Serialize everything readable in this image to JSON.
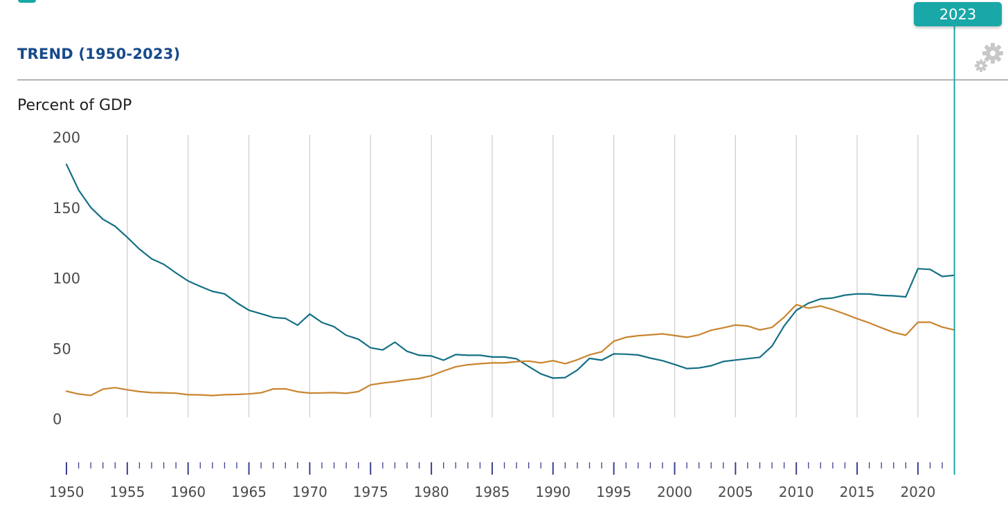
{
  "header": {
    "section_title": "TREND (1950-2023)",
    "selected_year": "2023"
  },
  "colors": {
    "series_teal": "#136f84",
    "series_orange": "#c8842e",
    "accent": "#1aa7a7",
    "title_blue": "#174a8b",
    "grid": "#cccccc",
    "axis_ticks": "#3a3f8f"
  },
  "icons": {
    "settings": "gear-icon"
  },
  "chart_data": {
    "type": "line",
    "ylabel": "Percent of GDP",
    "xlabel": "",
    "ylim": [
      0,
      200
    ],
    "xlim": [
      1950,
      2023
    ],
    "y_ticks": [
      0,
      50,
      100,
      150,
      200
    ],
    "x_ticks": [
      1950,
      1955,
      1960,
      1965,
      1970,
      1975,
      1980,
      1985,
      1990,
      1995,
      2000,
      2005,
      2010,
      2015,
      2020
    ],
    "grid": "vertical",
    "highlight_year": 2023,
    "series": [
      {
        "color": "#136f84",
        "points": [
          [
            1950,
            180.6
          ],
          [
            1951,
            162.3
          ],
          [
            1952,
            150.0
          ],
          [
            1953,
            141.6
          ],
          [
            1954,
            136.6
          ],
          [
            1955,
            128.8
          ],
          [
            1956,
            120.4
          ],
          [
            1957,
            113.5
          ],
          [
            1958,
            109.6
          ],
          [
            1959,
            103.5
          ],
          [
            1960,
            97.8
          ],
          [
            1961,
            93.9
          ],
          [
            1962,
            90.4
          ],
          [
            1963,
            88.6
          ],
          [
            1964,
            82.3
          ],
          [
            1965,
            77.0
          ],
          [
            1966,
            74.5
          ],
          [
            1967,
            71.9
          ],
          [
            1968,
            71.2
          ],
          [
            1969,
            66.4
          ],
          [
            1970,
            74.3
          ],
          [
            1971,
            68.3
          ],
          [
            1972,
            65.3
          ],
          [
            1973,
            59.2
          ],
          [
            1974,
            56.4
          ],
          [
            1975,
            50.3
          ],
          [
            1976,
            48.8
          ],
          [
            1977,
            54.3
          ],
          [
            1978,
            47.8
          ],
          [
            1979,
            45.0
          ],
          [
            1980,
            44.5
          ],
          [
            1981,
            41.5
          ],
          [
            1982,
            45.5
          ],
          [
            1983,
            45.0
          ],
          [
            1984,
            45.0
          ],
          [
            1985,
            43.8
          ],
          [
            1986,
            43.8
          ],
          [
            1987,
            42.5
          ],
          [
            1988,
            37.0
          ],
          [
            1989,
            31.8
          ],
          [
            1990,
            28.8
          ],
          [
            1991,
            29.2
          ],
          [
            1992,
            34.5
          ],
          [
            1993,
            42.8
          ],
          [
            1994,
            41.5
          ],
          [
            1995,
            46.0
          ],
          [
            1996,
            45.8
          ],
          [
            1997,
            45.2
          ],
          [
            1998,
            43.0
          ],
          [
            1999,
            41.2
          ],
          [
            2000,
            38.5
          ],
          [
            2001,
            35.6
          ],
          [
            2002,
            36.0
          ],
          [
            2003,
            37.6
          ],
          [
            2004,
            40.6
          ],
          [
            2005,
            41.6
          ],
          [
            2006,
            42.6
          ],
          [
            2007,
            43.6
          ],
          [
            2008,
            51.5
          ],
          [
            2009,
            65.8
          ],
          [
            2010,
            76.9
          ],
          [
            2011,
            82.0
          ],
          [
            2012,
            85.0
          ],
          [
            2013,
            85.7
          ],
          [
            2014,
            87.7
          ],
          [
            2015,
            88.6
          ],
          [
            2016,
            88.5
          ],
          [
            2017,
            87.5
          ],
          [
            2018,
            87.2
          ],
          [
            2019,
            86.5
          ],
          [
            2020,
            106.5
          ],
          [
            2021,
            106.0
          ],
          [
            2022,
            101.0
          ],
          [
            2023,
            101.8
          ]
        ]
      },
      {
        "color": "#c8842e",
        "points": [
          [
            1950,
            19.5
          ],
          [
            1951,
            17.5
          ],
          [
            1952,
            16.5
          ],
          [
            1953,
            21.0
          ],
          [
            1954,
            22.0
          ],
          [
            1955,
            20.5
          ],
          [
            1956,
            19.2
          ],
          [
            1957,
            18.5
          ],
          [
            1958,
            18.4
          ],
          [
            1959,
            18.1
          ],
          [
            1960,
            17.0
          ],
          [
            1961,
            16.9
          ],
          [
            1962,
            16.4
          ],
          [
            1963,
            17.0
          ],
          [
            1964,
            17.2
          ],
          [
            1965,
            17.6
          ],
          [
            1966,
            18.4
          ],
          [
            1967,
            21.1
          ],
          [
            1968,
            21.2
          ],
          [
            1969,
            19.1
          ],
          [
            1970,
            18.2
          ],
          [
            1971,
            18.3
          ],
          [
            1972,
            18.5
          ],
          [
            1973,
            18.0
          ],
          [
            1974,
            19.2
          ],
          [
            1975,
            24.0
          ],
          [
            1976,
            25.3
          ],
          [
            1977,
            26.3
          ],
          [
            1978,
            27.6
          ],
          [
            1979,
            28.5
          ],
          [
            1980,
            30.5
          ],
          [
            1981,
            33.9
          ],
          [
            1982,
            36.8
          ],
          [
            1983,
            38.3
          ],
          [
            1984,
            39.0
          ],
          [
            1985,
            39.6
          ],
          [
            1986,
            39.6
          ],
          [
            1987,
            40.5
          ],
          [
            1988,
            40.9
          ],
          [
            1989,
            39.6
          ],
          [
            1990,
            41.2
          ],
          [
            1991,
            39.0
          ],
          [
            1992,
            41.8
          ],
          [
            1993,
            45.3
          ],
          [
            1994,
            47.5
          ],
          [
            1995,
            55.0
          ],
          [
            1996,
            57.8
          ],
          [
            1997,
            58.9
          ],
          [
            1998,
            59.5
          ],
          [
            1999,
            60.2
          ],
          [
            2000,
            59.0
          ],
          [
            2001,
            57.8
          ],
          [
            2002,
            59.5
          ],
          [
            2003,
            62.8
          ],
          [
            2004,
            64.5
          ],
          [
            2005,
            66.5
          ],
          [
            2006,
            65.8
          ],
          [
            2007,
            63.0
          ],
          [
            2008,
            64.8
          ],
          [
            2009,
            72.0
          ],
          [
            2010,
            81.0
          ],
          [
            2011,
            78.5
          ],
          [
            2012,
            80.0
          ],
          [
            2013,
            77.4
          ],
          [
            2014,
            74.3
          ],
          [
            2015,
            71.0
          ],
          [
            2016,
            68.0
          ],
          [
            2017,
            64.5
          ],
          [
            2018,
            61.3
          ],
          [
            2019,
            59.2
          ],
          [
            2020,
            68.5
          ],
          [
            2021,
            68.5
          ],
          [
            2022,
            65.0
          ],
          [
            2023,
            63.0
          ]
        ]
      }
    ]
  }
}
